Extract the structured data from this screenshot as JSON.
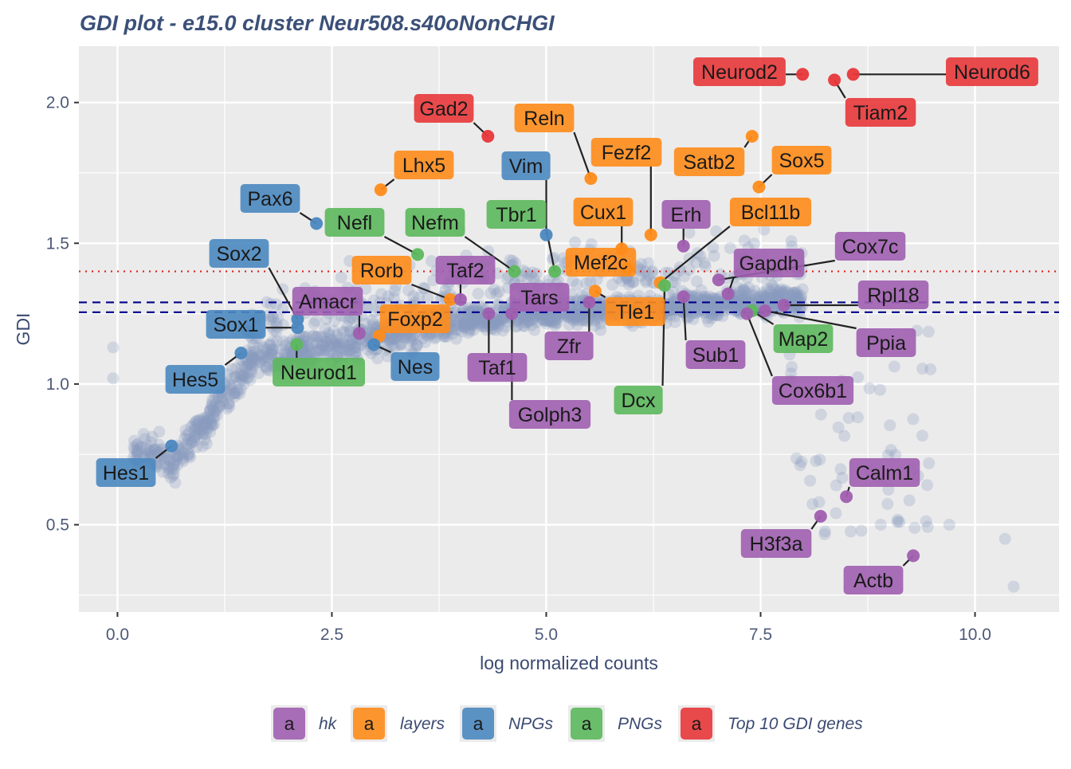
{
  "chart_data": {
    "type": "scatter",
    "title": "GDI plot - e15.0 cluster Neur508.s40oNonCHGI",
    "xlabel": "log normalized counts",
    "ylabel": "GDI",
    "xlim": [
      -0.45,
      10.98
    ],
    "ylim": [
      0.19,
      2.2
    ],
    "x_ticks": [
      0.0,
      2.5,
      5.0,
      7.5,
      10.0
    ],
    "x_tick_labels": [
      "0.0",
      "2.5",
      "5.0",
      "7.5",
      "10.0"
    ],
    "y_ticks": [
      0.5,
      1.0,
      1.5,
      2.0
    ],
    "y_tick_labels": [
      "0.5",
      "1.0",
      "1.5",
      "2.0"
    ],
    "grid": true,
    "background": "#ebebeb",
    "reference_lines": [
      {
        "y": 1.4,
        "style": "dotted",
        "color": "#e02020"
      },
      {
        "y": 1.29,
        "style": "dashed",
        "color": "#00008b"
      },
      {
        "y": 1.255,
        "style": "dashed",
        "color": "#00008b"
      }
    ],
    "background_points_color": "#8a9ac0",
    "legend_position": "bottom",
    "legend": [
      {
        "name": "hk",
        "color": "#a05fb0",
        "key": "a"
      },
      {
        "name": "layers",
        "color": "#ff8c1a",
        "key": "a"
      },
      {
        "name": "NPGs",
        "color": "#4b88c0",
        "key": "a"
      },
      {
        "name": "PNGs",
        "color": "#5cb85c",
        "key": "a"
      },
      {
        "name": "Top 10 GDI genes",
        "color": "#e8373a",
        "key": "a"
      }
    ],
    "labeled_genes": [
      {
        "gene": "Neurod2",
        "group": "Top 10 GDI genes",
        "x": 7.99,
        "y": 2.1
      },
      {
        "gene": "Neurod6",
        "group": "Top 10 GDI genes",
        "x": 8.58,
        "y": 2.1
      },
      {
        "gene": "Tiam2",
        "group": "Top 10 GDI genes",
        "x": 8.36,
        "y": 2.08
      },
      {
        "gene": "Gad2",
        "group": "Top 10 GDI genes",
        "x": 4.32,
        "y": 1.88
      },
      {
        "gene": "Reln",
        "group": "layers",
        "x": 5.52,
        "y": 1.73
      },
      {
        "gene": "Fezf2",
        "group": "layers",
        "x": 6.22,
        "y": 1.53
      },
      {
        "gene": "Satb2",
        "group": "layers",
        "x": 7.4,
        "y": 1.88
      },
      {
        "gene": "Sox5",
        "group": "layers",
        "x": 7.48,
        "y": 1.7
      },
      {
        "gene": "Lhx5",
        "group": "layers",
        "x": 3.07,
        "y": 1.69
      },
      {
        "gene": "Cux1",
        "group": "layers",
        "x": 5.88,
        "y": 1.48
      },
      {
        "gene": "Bcl11b",
        "group": "layers",
        "x": 6.33,
        "y": 1.36
      },
      {
        "gene": "Mef2c",
        "group": "layers",
        "x": 5.95,
        "y": 1.41
      },
      {
        "gene": "Rorb",
        "group": "layers",
        "x": 3.88,
        "y": 1.3
      },
      {
        "gene": "Foxp2",
        "group": "layers",
        "x": 3.05,
        "y": 1.17
      },
      {
        "gene": "Tle1",
        "group": "layers",
        "x": 5.57,
        "y": 1.33
      },
      {
        "gene": "Vim",
        "group": "NPGs",
        "x": 5.0,
        "y": 1.53
      },
      {
        "gene": "Pax6",
        "group": "NPGs",
        "x": 2.32,
        "y": 1.57
      },
      {
        "gene": "Sox2",
        "group": "NPGs",
        "x": 2.1,
        "y": 1.23
      },
      {
        "gene": "Sox1",
        "group": "NPGs",
        "x": 2.1,
        "y": 1.2
      },
      {
        "gene": "Hes5",
        "group": "NPGs",
        "x": 1.44,
        "y": 1.11
      },
      {
        "gene": "Nes",
        "group": "NPGs",
        "x": 2.99,
        "y": 1.14
      },
      {
        "gene": "Hes1",
        "group": "NPGs",
        "x": 0.63,
        "y": 0.78
      },
      {
        "gene": "Nefl",
        "group": "PNGs",
        "x": 3.5,
        "y": 1.46
      },
      {
        "gene": "Nefm",
        "group": "PNGs",
        "x": 4.63,
        "y": 1.4
      },
      {
        "gene": "Tbr1",
        "group": "PNGs",
        "x": 5.1,
        "y": 1.4
      },
      {
        "gene": "Neurod1",
        "group": "PNGs",
        "x": 2.09,
        "y": 1.14
      },
      {
        "gene": "Dcx",
        "group": "PNGs",
        "x": 6.38,
        "y": 1.35
      },
      {
        "gene": "Map2",
        "group": "PNGs",
        "x": 7.4,
        "y": 1.26
      },
      {
        "gene": "Erh",
        "group": "hk",
        "x": 6.6,
        "y": 1.49
      },
      {
        "gene": "Cox7c",
        "group": "hk",
        "x": 7.01,
        "y": 1.37
      },
      {
        "gene": "Gapdh",
        "group": "hk",
        "x": 7.12,
        "y": 1.32
      },
      {
        "gene": "Rpl18",
        "group": "hk",
        "x": 7.77,
        "y": 1.28
      },
      {
        "gene": "Ppia",
        "group": "hk",
        "x": 7.55,
        "y": 1.26
      },
      {
        "gene": "Cox6b1",
        "group": "hk",
        "x": 7.34,
        "y": 1.25
      },
      {
        "gene": "Sub1",
        "group": "hk",
        "x": 6.6,
        "y": 1.31
      },
      {
        "gene": "Taf2",
        "group": "hk",
        "x": 4.0,
        "y": 1.3
      },
      {
        "gene": "Tars",
        "group": "hk",
        "x": 4.85,
        "y": 1.3
      },
      {
        "gene": "Amacr",
        "group": "hk",
        "x": 2.82,
        "y": 1.18
      },
      {
        "gene": "Zfr",
        "group": "hk",
        "x": 5.5,
        "y": 1.29
      },
      {
        "gene": "Taf1",
        "group": "hk",
        "x": 4.33,
        "y": 1.25
      },
      {
        "gene": "Golph3",
        "group": "hk",
        "x": 4.6,
        "y": 1.25
      },
      {
        "gene": "Calm1",
        "group": "hk",
        "x": 8.5,
        "y": 0.6
      },
      {
        "gene": "H3f3a",
        "group": "hk",
        "x": 8.2,
        "y": 0.53
      },
      {
        "gene": "Actb",
        "group": "hk",
        "x": 9.28,
        "y": 0.39
      }
    ]
  }
}
